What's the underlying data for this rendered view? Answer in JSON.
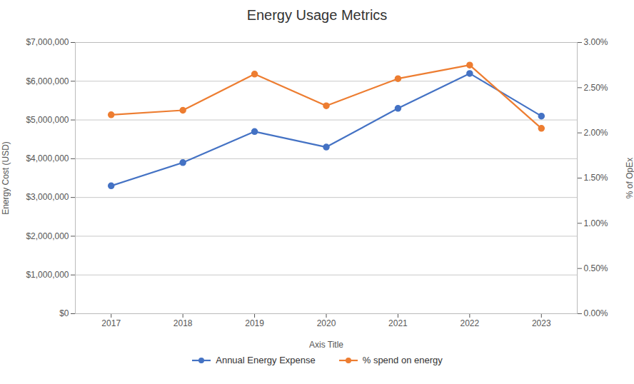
{
  "chart_data": {
    "type": "line",
    "title": "Energy Usage Metrics",
    "xlabel": "Axis Title",
    "ylabel": "Energy Cost (USD)",
    "y2label": "% of OpEx",
    "x": [
      2017,
      2018,
      2019,
      2020,
      2021,
      2022,
      2023
    ],
    "series": [
      {
        "name": "Annual Energy Expense",
        "color": "#4472C4",
        "marker": "circle",
        "values": [
          3300000,
          3900000,
          4700000,
          4300000,
          5300000,
          6200000,
          5100000
        ]
      },
      {
        "name": "% spend on energy",
        "color": "#ED7D31",
        "marker": "circle",
        "axis": "y2",
        "values": [
          0.022,
          0.0225,
          0.0265,
          0.023,
          0.026,
          0.0275,
          0.0205
        ]
      }
    ],
    "xlim": [
      2016.5,
      2023.5
    ],
    "xticks": [
      2017,
      2018,
      2019,
      2020,
      2021,
      2022,
      2023
    ],
    "ylim": [
      0,
      7000000
    ],
    "yticks": [
      {
        "value": 0,
        "label": "$0"
      },
      {
        "value": 1000000,
        "label": "$1,000,000"
      },
      {
        "value": 2000000,
        "label": "$2,000,000"
      },
      {
        "value": 3000000,
        "label": "$3,000,000"
      },
      {
        "value": 4000000,
        "label": "$4,000,000"
      },
      {
        "value": 5000000,
        "label": "$5,000,000"
      },
      {
        "value": 6000000,
        "label": "$6,000,000"
      },
      {
        "value": 7000000,
        "label": "$7,000,000"
      }
    ],
    "y2lim": [
      0,
      0.03
    ],
    "y2ticks": [
      {
        "value": 0.0,
        "label": "0.00%"
      },
      {
        "value": 0.005,
        "label": "0.50%"
      },
      {
        "value": 0.01,
        "label": "1.00%"
      },
      {
        "value": 0.015,
        "label": "1.50%"
      },
      {
        "value": 0.02,
        "label": "2.00%"
      },
      {
        "value": 0.025,
        "label": "2.50%"
      },
      {
        "value": 0.03,
        "label": "3.00%"
      }
    ],
    "grid": true,
    "legend": "bottom"
  }
}
